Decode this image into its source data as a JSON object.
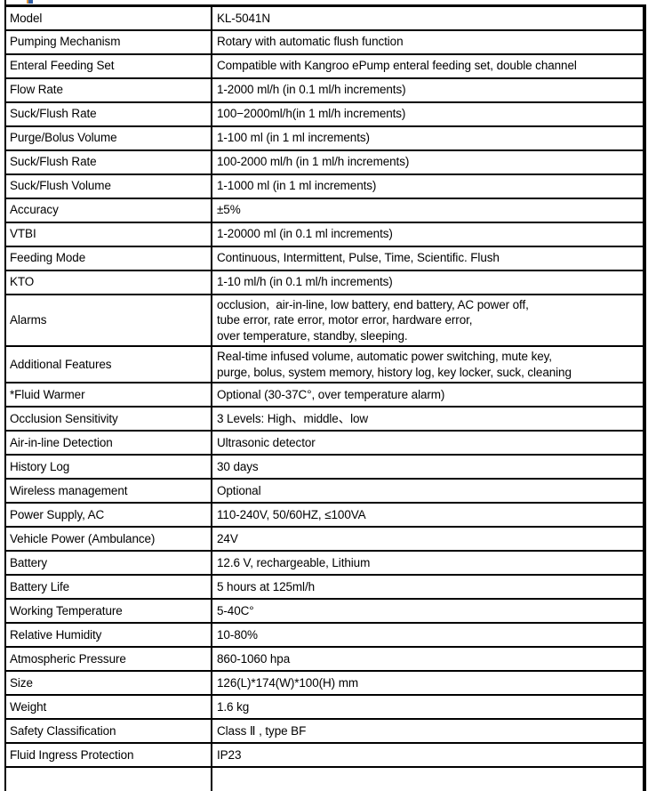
{
  "table": {
    "rows": [
      {
        "label": "Model",
        "value": "KL-5041N"
      },
      {
        "label": "Pumping Mechanism",
        "value": "Rotary with automatic flush function"
      },
      {
        "label": "Enteral Feeding Set",
        "value": "Compatible with Kangroo ePump enteral feeding set, double channel"
      },
      {
        "label": "Flow Rate",
        "value": "1-2000 ml/h (in 0.1 ml/h increments)"
      },
      {
        "label": "Suck/Flush Rate",
        "value": "100−2000ml/h(in 1 ml/h increments)"
      },
      {
        "label": "Purge/Bolus Volume",
        "value": "1-100 ml (in 1 ml increments)"
      },
      {
        "label": "Suck/Flush Rate",
        "value": "100-2000 ml/h (in 1 ml/h increments)"
      },
      {
        "label": "Suck/Flush Volume",
        "value": "1-1000 ml (in 1 ml increments)"
      },
      {
        "label": "Accuracy",
        "value": "±5%"
      },
      {
        "label": "VTBI",
        "value": "1-20000 ml (in 0.1 ml increments)"
      },
      {
        "label": "Feeding Mode",
        "value": "Continuous, Intermittent, Pulse, Time, Scientific. Flush"
      },
      {
        "label": "KTO",
        "value": "1-10 ml/h (in 0.1 ml/h increments)"
      },
      {
        "label": "Alarms",
        "value": "occlusion,  air-in-line, low battery, end battery, AC power off,\ntube error, rate error, motor error, hardware error,\nover temperature, standby, sleeping."
      },
      {
        "label": "Additional Features",
        "value": "Real-time infused volume, automatic power switching, mute key,\npurge, bolus, system memory, history log, key locker, suck, cleaning"
      },
      {
        "label": "*Fluid Warmer",
        "value": "Optional (30-37C°, over temperature alarm)"
      },
      {
        "label": "Occlusion Sensitivity",
        "value": "3 Levels: High、middle、low"
      },
      {
        "label": "Air-in-line Detection",
        "value": "Ultrasonic detector"
      },
      {
        "label": "History Log",
        "value": "30 days"
      },
      {
        "label": "Wireless management",
        "value": "Optional"
      },
      {
        "label": "Power Supply, AC",
        "value": "110-240V, 50/60HZ, ≤100VA"
      },
      {
        "label": "Vehicle Power (Ambulance)",
        "value": "24V"
      },
      {
        "label": "Battery",
        "value": "12.6 V, rechargeable, Lithium"
      },
      {
        "label": "Battery Life",
        "value": "5 hours at 125ml/h"
      },
      {
        "label": "Working Temperature",
        "value": "5-40C°"
      },
      {
        "label": "Relative Humidity",
        "value": "10-80%"
      },
      {
        "label": "Atmospheric Pressure",
        "value": "860-1060 hpa"
      },
      {
        "label": "Size",
        "value": "126(L)*174(W)*100(H) mm"
      },
      {
        "label": "Weight",
        "value": "1.6 kg"
      },
      {
        "label": "Safety Classification",
        "value": "Class Ⅱ , type BF"
      },
      {
        "label": "Fluid Ingress Protection",
        "value": "IP23"
      }
    ]
  }
}
